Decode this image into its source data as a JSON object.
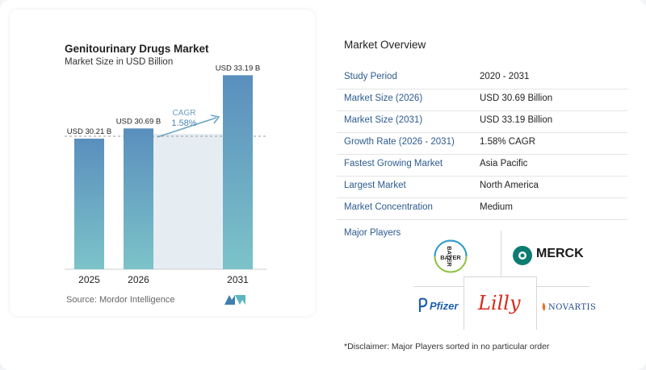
{
  "chart": {
    "title": "Genitourinary Drugs Market",
    "subtitle": "Market Size in USD Billion",
    "source": "Source:  Mordor Intelligence",
    "cagr_label": "CAGR",
    "cagr_value": "1.58%"
  },
  "chart_data": {
    "type": "bar",
    "categories": [
      "2025",
      "2026",
      "2031"
    ],
    "values": [
      30.21,
      30.69,
      33.19
    ],
    "data_labels": [
      "USD 30.21 B",
      "USD 30.69 B",
      "USD 33.19 B"
    ],
    "title": "Genitourinary Drugs Market",
    "subtitle": "Market Size in USD Billion",
    "annotation": "CAGR 1.58%",
    "colors": {
      "bar_top": "#5a8fbd",
      "bar_bottom": "#7cc3c9",
      "region": "#e5edf3",
      "arrow": "#6fa6c3"
    }
  },
  "overview": {
    "title": "Market Overview",
    "rows": [
      {
        "key": "Study Period",
        "value": "2020 - 2031"
      },
      {
        "key": "Market Size (2026)",
        "value": "USD 30.69 Billion"
      },
      {
        "key": "Market Size (2031)",
        "value": "USD 33.19 Billion"
      },
      {
        "key": "Growth Rate (2026 - 2031)",
        "value": "1.58% CAGR"
      },
      {
        "key": "Fastest Growing Market",
        "value": "Asia Pacific"
      },
      {
        "key": "Largest Market",
        "value": "North America"
      },
      {
        "key": "Market Concentration",
        "value": "Medium"
      }
    ]
  },
  "players": {
    "title": "Major Players",
    "bayer": "BAYER",
    "merck": "MERCK",
    "pfizer": "Pfizer",
    "lilly": "Lilly",
    "novartis": "NOVARTIS"
  },
  "disclaimer": "*Disclaimer: Major Players sorted in no particular order"
}
